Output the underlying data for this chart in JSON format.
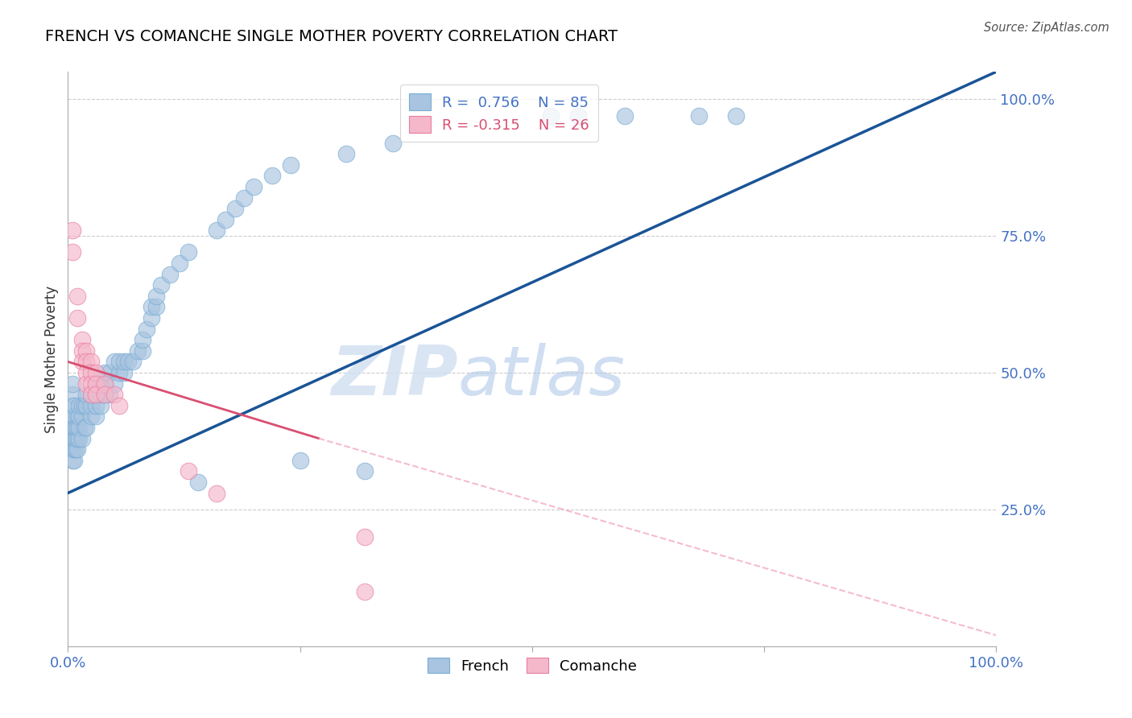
{
  "title": "FRENCH VS COMANCHE SINGLE MOTHER POVERTY CORRELATION CHART",
  "source": "Source: ZipAtlas.com",
  "ylabel": "Single Mother Poverty",
  "french_R": 0.756,
  "french_N": 85,
  "comanche_R": -0.315,
  "comanche_N": 26,
  "french_color": "#a8c4e0",
  "french_edge_color": "#7aadd4",
  "comanche_color": "#f5b8cb",
  "comanche_edge_color": "#e87fa0",
  "french_line_color": "#1a5496",
  "comanche_line_solid_color": "#d94f72",
  "comanche_line_dash_color": "#f0a0b8",
  "watermark_zip": "ZIP",
  "watermark_atlas": "atlas",
  "french_scatter": [
    [
      0.005,
      0.34
    ],
    [
      0.005,
      0.36
    ],
    [
      0.005,
      0.38
    ],
    [
      0.005,
      0.4
    ],
    [
      0.005,
      0.42
    ],
    [
      0.005,
      0.44
    ],
    [
      0.005,
      0.46
    ],
    [
      0.005,
      0.48
    ],
    [
      0.007,
      0.34
    ],
    [
      0.007,
      0.36
    ],
    [
      0.007,
      0.38
    ],
    [
      0.007,
      0.4
    ],
    [
      0.007,
      0.42
    ],
    [
      0.007,
      0.44
    ],
    [
      0.008,
      0.36
    ],
    [
      0.008,
      0.38
    ],
    [
      0.008,
      0.4
    ],
    [
      0.01,
      0.36
    ],
    [
      0.01,
      0.38
    ],
    [
      0.01,
      0.4
    ],
    [
      0.01,
      0.42
    ],
    [
      0.012,
      0.38
    ],
    [
      0.012,
      0.4
    ],
    [
      0.012,
      0.42
    ],
    [
      0.012,
      0.44
    ],
    [
      0.015,
      0.38
    ],
    [
      0.015,
      0.42
    ],
    [
      0.015,
      0.44
    ],
    [
      0.018,
      0.4
    ],
    [
      0.018,
      0.44
    ],
    [
      0.02,
      0.4
    ],
    [
      0.02,
      0.44
    ],
    [
      0.02,
      0.46
    ],
    [
      0.025,
      0.42
    ],
    [
      0.025,
      0.44
    ],
    [
      0.025,
      0.46
    ],
    [
      0.03,
      0.42
    ],
    [
      0.03,
      0.44
    ],
    [
      0.03,
      0.46
    ],
    [
      0.03,
      0.48
    ],
    [
      0.035,
      0.44
    ],
    [
      0.035,
      0.46
    ],
    [
      0.035,
      0.48
    ],
    [
      0.04,
      0.46
    ],
    [
      0.04,
      0.48
    ],
    [
      0.04,
      0.5
    ],
    [
      0.045,
      0.46
    ],
    [
      0.045,
      0.5
    ],
    [
      0.05,
      0.48
    ],
    [
      0.05,
      0.52
    ],
    [
      0.055,
      0.5
    ],
    [
      0.055,
      0.52
    ],
    [
      0.06,
      0.5
    ],
    [
      0.06,
      0.52
    ],
    [
      0.065,
      0.52
    ],
    [
      0.07,
      0.52
    ],
    [
      0.075,
      0.54
    ],
    [
      0.08,
      0.54
    ],
    [
      0.08,
      0.56
    ],
    [
      0.085,
      0.58
    ],
    [
      0.09,
      0.6
    ],
    [
      0.09,
      0.62
    ],
    [
      0.095,
      0.62
    ],
    [
      0.095,
      0.64
    ],
    [
      0.1,
      0.66
    ],
    [
      0.11,
      0.68
    ],
    [
      0.12,
      0.7
    ],
    [
      0.13,
      0.72
    ],
    [
      0.14,
      0.3
    ],
    [
      0.16,
      0.76
    ],
    [
      0.17,
      0.78
    ],
    [
      0.18,
      0.8
    ],
    [
      0.19,
      0.82
    ],
    [
      0.2,
      0.84
    ],
    [
      0.22,
      0.86
    ],
    [
      0.24,
      0.88
    ],
    [
      0.25,
      0.34
    ],
    [
      0.3,
      0.9
    ],
    [
      0.32,
      0.32
    ],
    [
      0.35,
      0.92
    ],
    [
      0.52,
      0.97
    ],
    [
      0.55,
      0.97
    ],
    [
      0.6,
      0.97
    ],
    [
      0.68,
      0.97
    ],
    [
      0.72,
      0.97
    ]
  ],
  "comanche_scatter": [
    [
      0.005,
      0.76
    ],
    [
      0.005,
      0.72
    ],
    [
      0.01,
      0.64
    ],
    [
      0.01,
      0.6
    ],
    [
      0.015,
      0.56
    ],
    [
      0.015,
      0.54
    ],
    [
      0.015,
      0.52
    ],
    [
      0.02,
      0.54
    ],
    [
      0.02,
      0.52
    ],
    [
      0.02,
      0.5
    ],
    [
      0.02,
      0.48
    ],
    [
      0.025,
      0.52
    ],
    [
      0.025,
      0.5
    ],
    [
      0.025,
      0.48
    ],
    [
      0.025,
      0.46
    ],
    [
      0.03,
      0.5
    ],
    [
      0.03,
      0.48
    ],
    [
      0.03,
      0.46
    ],
    [
      0.04,
      0.48
    ],
    [
      0.04,
      0.46
    ],
    [
      0.05,
      0.46
    ],
    [
      0.055,
      0.44
    ],
    [
      0.13,
      0.32
    ],
    [
      0.16,
      0.28
    ],
    [
      0.32,
      0.2
    ],
    [
      0.32,
      0.1
    ]
  ],
  "xlim": [
    0.0,
    1.0
  ],
  "ylim": [
    0.0,
    1.05
  ],
  "xtick_vals": [
    0.0,
    0.25,
    0.5,
    0.75,
    1.0
  ],
  "ytick_vals": [
    0.25,
    0.5,
    0.75,
    1.0
  ],
  "grid_vals": [
    0.25,
    0.5,
    0.75,
    1.0
  ],
  "french_line": [
    [
      0.0,
      0.28
    ],
    [
      1.0,
      1.05
    ]
  ],
  "comanche_line_solid": [
    [
      0.0,
      0.52
    ],
    [
      0.27,
      0.38
    ]
  ],
  "comanche_line_dash": [
    [
      0.27,
      0.38
    ],
    [
      1.0,
      0.02
    ]
  ]
}
